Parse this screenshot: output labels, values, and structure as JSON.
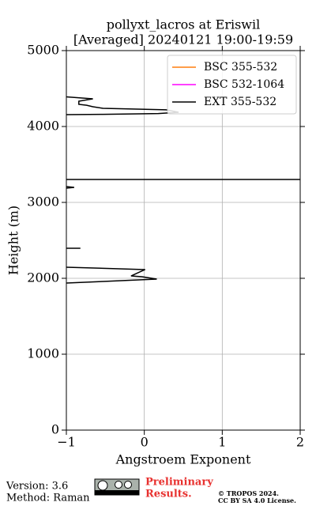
{
  "chart_data": {
    "type": "profile",
    "title": [
      "pollyxt_lacros at Eriswil",
      "[Averaged] 20240121 19:00-19:59"
    ],
    "xlabel": "Angstroem Exponent",
    "ylabel": "Height (m)",
    "xlim": [
      -1,
      2
    ],
    "xticks": [
      {
        "value": -1,
        "label": "−1"
      },
      0,
      1,
      2
    ],
    "ylim": [
      0,
      5000
    ],
    "yticks": [
      0,
      1000,
      2000,
      3000,
      4000,
      5000
    ],
    "grid": true,
    "legend": "upper right",
    "y": [
      4390,
      4365,
      4333,
      4292,
      4280,
      4260,
      4240,
      4220,
      4188,
      4170,
      4160,
      4156,
      null,
      3302,
      3302,
      null,
      3208,
      3198,
      3188,
      null,
      2396,
      2396,
      null,
      2146,
      2115,
      2073,
      2031,
      2021,
      1990,
      1958,
      1938
    ],
    "series": [
      {
        "name": "BSC 355-532",
        "color": "#ff7f0e",
        "values": [
          null,
          null,
          null,
          null,
          null,
          null,
          null,
          null,
          null,
          null,
          null,
          null,
          null,
          null,
          null,
          null,
          null,
          null,
          null,
          null,
          null,
          null,
          null,
          null,
          null,
          null,
          null,
          null,
          null,
          null,
          null
        ]
      },
      {
        "name": "BSC 532-1064",
        "color": "#ff00ff",
        "values": [
          null,
          null,
          null,
          null,
          null,
          null,
          null,
          null,
          null,
          null,
          null,
          null,
          null,
          null,
          null,
          null,
          null,
          null,
          null,
          null,
          null,
          null,
          null,
          null,
          null,
          null,
          null,
          null,
          null,
          null,
          null
        ]
      },
      {
        "name": "EXT 355-532",
        "color": "#000000",
        "values": [
          -1,
          -0.66,
          -0.84,
          -0.84,
          -0.74,
          -0.66,
          -0.53,
          0.28,
          0.44,
          0.18,
          -0.53,
          -1,
          null,
          -1,
          2,
          null,
          -1,
          -0.9,
          -1,
          null,
          -1,
          -0.82,
          null,
          -1,
          0.01,
          -0.08,
          -0.17,
          -0.03,
          0.16,
          -0.53,
          -1
        ]
      }
    ]
  },
  "footer": {
    "version": "Version: 3.6",
    "method": "Method: Raman",
    "preliminary": [
      "Preliminary",
      "Results."
    ],
    "license": [
      "© TROPOS 2024.",
      "CC BY SA 4.0 License."
    ]
  }
}
